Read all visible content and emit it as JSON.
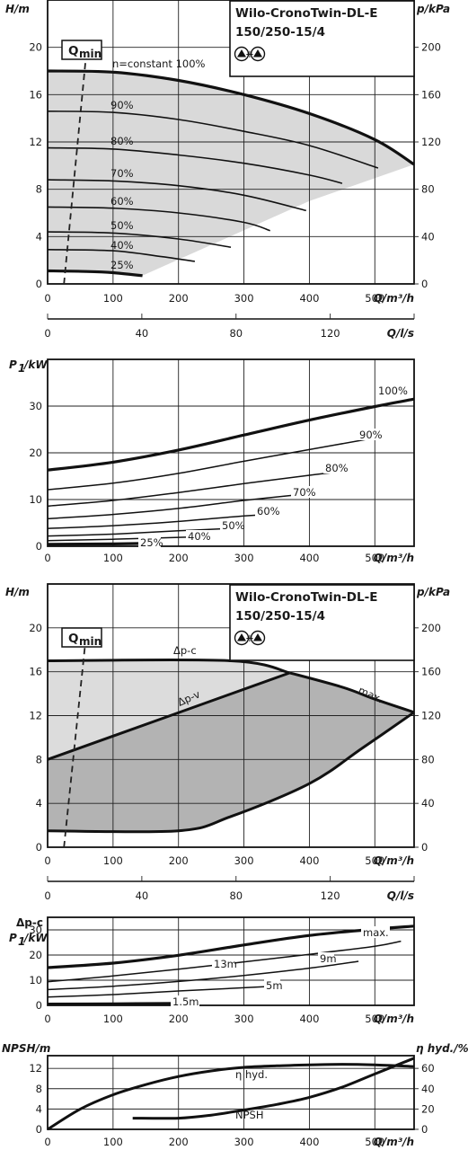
{
  "chart_data": [
    {
      "id": "hq",
      "type": "line",
      "title": "Wilo-CronoTwin-DL-E",
      "subtitle": "150/250-15/4",
      "pump_symbol": "twin-pump-icon",
      "xlabel": "Q/m³/h",
      "ylabel": "H/m",
      "ylabel_right": "p/kPa",
      "xlim": [
        0,
        560
      ],
      "ylim": [
        0,
        24
      ],
      "ylim_right": [
        0,
        240
      ],
      "xticks": [
        0,
        100,
        200,
        300,
        400,
        500
      ],
      "yticks": [
        0,
        4,
        8,
        12,
        16,
        20
      ],
      "yticks_right": [
        0,
        40,
        80,
        120,
        160,
        200
      ],
      "secondary_x": {
        "label": "Q/l/s",
        "ticks": [
          0,
          40,
          80,
          120
        ],
        "lim": [
          0,
          155.6
        ]
      },
      "qmin_label": "Q",
      "qmin_subscript": "min",
      "qmin_line": [
        [
          25,
          0
        ],
        [
          60,
          20
        ]
      ],
      "area": {
        "color": "#d9d9d9"
      },
      "series": [
        {
          "label": "n=constant 100%",
          "bold": true,
          "points": [
            [
              0,
              18.0
            ],
            [
              100,
              17.9
            ],
            [
              200,
              17.2
            ],
            [
              300,
              16.0
            ],
            [
              400,
              14.4
            ],
            [
              500,
              12.2
            ],
            [
              560,
              10.1
            ]
          ]
        },
        {
          "label": "90%",
          "points": [
            [
              0,
              14.6
            ],
            [
              100,
              14.5
            ],
            [
              200,
              13.9
            ],
            [
              300,
              12.9
            ],
            [
              400,
              11.7
            ],
            [
              505,
              9.8
            ]
          ]
        },
        {
          "label": "80%",
          "points": [
            [
              0,
              11.5
            ],
            [
              100,
              11.4
            ],
            [
              200,
              10.9
            ],
            [
              300,
              10.2
            ],
            [
              400,
              9.2
            ],
            [
              450,
              8.5
            ]
          ]
        },
        {
          "label": "70%",
          "points": [
            [
              0,
              8.8
            ],
            [
              100,
              8.7
            ],
            [
              200,
              8.3
            ],
            [
              300,
              7.5
            ],
            [
              395,
              6.2
            ]
          ]
        },
        {
          "label": "60%",
          "points": [
            [
              0,
              6.5
            ],
            [
              100,
              6.4
            ],
            [
              200,
              6.0
            ],
            [
              300,
              5.2
            ],
            [
              340,
              4.5
            ]
          ]
        },
        {
          "label": "50%",
          "points": [
            [
              0,
              4.4
            ],
            [
              100,
              4.3
            ],
            [
              200,
              3.8
            ],
            [
              280,
              3.1
            ]
          ]
        },
        {
          "label": "40%",
          "points": [
            [
              0,
              2.9
            ],
            [
              100,
              2.8
            ],
            [
              175,
              2.3
            ],
            [
              225,
              1.9
            ]
          ]
        },
        {
          "label": "25%",
          "bold": true,
          "points": [
            [
              0,
              1.1
            ],
            [
              60,
              1.05
            ],
            [
              100,
              0.95
            ],
            [
              145,
              0.7
            ]
          ]
        }
      ]
    },
    {
      "id": "p1",
      "type": "line",
      "xlabel": "Q/m³/h",
      "ylabel": "P",
      "ylabel_sub": "1",
      "ylabel_unit": "/kW",
      "xlim": [
        0,
        560
      ],
      "ylim": [
        0,
        40
      ],
      "xticks": [
        0,
        100,
        200,
        300,
        400,
        500
      ],
      "yticks": [
        0,
        10,
        20,
        30
      ],
      "series": [
        {
          "label": "100%",
          "bold": true,
          "points": [
            [
              0,
              16.3
            ],
            [
              100,
              18.0
            ],
            [
              200,
              20.6
            ],
            [
              300,
              23.8
            ],
            [
              400,
              27.0
            ],
            [
              500,
              29.9
            ],
            [
              560,
              31.5
            ]
          ]
        },
        {
          "label": "90%",
          "points": [
            [
              0,
              12.1
            ],
            [
              100,
              13.5
            ],
            [
              200,
              15.6
            ],
            [
              300,
              18.2
            ],
            [
              400,
              20.7
            ],
            [
              505,
              23.3
            ]
          ]
        },
        {
          "label": "80%",
          "points": [
            [
              0,
              8.6
            ],
            [
              100,
              9.8
            ],
            [
              200,
              11.5
            ],
            [
              300,
              13.4
            ],
            [
              400,
              15.2
            ],
            [
              450,
              16.0
            ]
          ]
        },
        {
          "label": "70%",
          "points": [
            [
              0,
              5.9
            ],
            [
              100,
              6.8
            ],
            [
              200,
              8.1
            ],
            [
              300,
              9.8
            ],
            [
              395,
              11.2
            ]
          ]
        },
        {
          "label": "60%",
          "points": [
            [
              0,
              3.8
            ],
            [
              100,
              4.4
            ],
            [
              200,
              5.3
            ],
            [
              300,
              6.5
            ],
            [
              340,
              6.8
            ]
          ]
        },
        {
          "label": "50%",
          "points": [
            [
              0,
              2.2
            ],
            [
              100,
              2.6
            ],
            [
              200,
              3.3
            ],
            [
              280,
              3.8
            ]
          ]
        },
        {
          "label": "40%",
          "points": [
            [
              0,
              1.2
            ],
            [
              100,
              1.5
            ],
            [
              225,
              2.0
            ]
          ]
        },
        {
          "label": "25%",
          "bold": true,
          "points": [
            [
              0,
              0.4
            ],
            [
              100,
              0.5
            ],
            [
              145,
              0.6
            ]
          ]
        }
      ]
    },
    {
      "id": "ctrl",
      "type": "area",
      "title": "Wilo-CronoTwin-DL-E",
      "subtitle": "150/250-15/4",
      "pump_symbol": "twin-pump-icon",
      "xlabel": "Q/m³/h",
      "ylabel": "H/m",
      "ylabel_right": "p/kPa",
      "xlim": [
        0,
        560
      ],
      "ylim": [
        0,
        24
      ],
      "ylim_right": [
        0,
        240
      ],
      "xticks": [
        0,
        100,
        200,
        300,
        400,
        500
      ],
      "yticks": [
        0,
        4,
        8,
        12,
        16,
        20
      ],
      "yticks_right": [
        0,
        40,
        80,
        120,
        160,
        200
      ],
      "secondary_x": {
        "label": "Q/l/s",
        "ticks": [
          0,
          40,
          80,
          120
        ],
        "lim": [
          0,
          155.6
        ]
      },
      "qmin_label": "Q",
      "qmin_subscript": "min",
      "qmin_line": [
        [
          25,
          0
        ],
        [
          60,
          20
        ]
      ],
      "dp_c_label": "Δp-c",
      "dp_v_label": "Δp-v",
      "max_label": "max.",
      "light_color": "#dcdcdc",
      "dark_color": "#b3b3b3",
      "dp_c": [
        [
          0,
          17.0
        ],
        [
          280,
          17.0
        ],
        [
          370,
          15.9
        ]
      ],
      "dp_v": [
        [
          0,
          8.0
        ],
        [
          370,
          15.9
        ]
      ],
      "max_curve": [
        [
          370,
          15.9
        ],
        [
          450,
          14.6
        ],
        [
          500,
          13.5
        ],
        [
          560,
          12.3
        ]
      ],
      "min_curve": [
        [
          0,
          1.5
        ],
        [
          200,
          1.5
        ],
        [
          280,
          2.8
        ],
        [
          400,
          5.8
        ],
        [
          480,
          9.0
        ],
        [
          560,
          12.3
        ]
      ]
    },
    {
      "id": "dpc_power",
      "type": "line",
      "ylabel_line1": "Δp-c",
      "ylabel": "P",
      "ylabel_sub": "1",
      "ylabel_unit": "/kW",
      "xlabel": "Q/m³/h",
      "xlim": [
        0,
        560
      ],
      "ylim": [
        0,
        35
      ],
      "xticks": [
        0,
        100,
        200,
        300,
        400,
        500
      ],
      "yticks": [
        0,
        10,
        20,
        30
      ],
      "series": [
        {
          "label": "max.",
          "bold": true,
          "points": [
            [
              0,
              15.0
            ],
            [
              100,
              16.8
            ],
            [
              200,
              19.9
            ],
            [
              300,
              24.0
            ],
            [
              400,
              27.8
            ],
            [
              500,
              30.3
            ],
            [
              560,
              31.5
            ]
          ]
        },
        {
          "label": "13m",
          "points": [
            [
              0,
              9.4
            ],
            [
              100,
              11.7
            ],
            [
              200,
              14.4
            ],
            [
              300,
              17.3
            ],
            [
              400,
              20.3
            ],
            [
              500,
              23.5
            ],
            [
              540,
              25.5
            ]
          ]
        },
        {
          "label": "9m",
          "points": [
            [
              0,
              6.3
            ],
            [
              100,
              7.6
            ],
            [
              200,
              9.5
            ],
            [
              300,
              11.9
            ],
            [
              400,
              14.8
            ],
            [
              475,
              17.5
            ]
          ]
        },
        {
          "label": "5m",
          "points": [
            [
              0,
              3.3
            ],
            [
              100,
              4.3
            ],
            [
              200,
              5.7
            ],
            [
              300,
              7.0
            ],
            [
              345,
              7.6
            ]
          ]
        },
        {
          "label": "1.5m",
          "bold": true,
          "points": [
            [
              0,
              0.5
            ],
            [
              100,
              0.6
            ],
            [
              198,
              0.8
            ]
          ]
        }
      ]
    },
    {
      "id": "npsh",
      "type": "line",
      "xlabel": "Q/m³/h",
      "ylabel": "NPSH/m",
      "ylabel_right": "η hyd./%",
      "xlim": [
        0,
        560
      ],
      "ylim": [
        0,
        14.5
      ],
      "ylim_right": [
        0,
        72.5
      ],
      "xticks": [
        0,
        100,
        200,
        300,
        400,
        500
      ],
      "yticks": [
        0,
        4,
        8,
        12
      ],
      "yticks_right": [
        0,
        20,
        40,
        60
      ],
      "series": [
        {
          "label": "η hyd.",
          "axis": "right",
          "points": [
            [
              0,
              0
            ],
            [
              50,
              20
            ],
            [
              100,
              34
            ],
            [
              150,
              44
            ],
            [
              200,
              52
            ],
            [
              250,
              57.5
            ],
            [
              300,
              61
            ],
            [
              350,
              62.5
            ],
            [
              400,
              63.5
            ],
            [
              450,
              64
            ],
            [
              500,
              63.5
            ],
            [
              560,
              61.8
            ]
          ]
        },
        {
          "label": "NPSH",
          "axis": "left",
          "points": [
            [
              130,
              2.2
            ],
            [
              200,
              2.2
            ],
            [
              250,
              2.8
            ],
            [
              300,
              3.8
            ],
            [
              350,
              4.9
            ],
            [
              400,
              6.3
            ],
            [
              450,
              8.3
            ],
            [
              500,
              10.9
            ],
            [
              560,
              14.0
            ]
          ]
        }
      ]
    }
  ]
}
